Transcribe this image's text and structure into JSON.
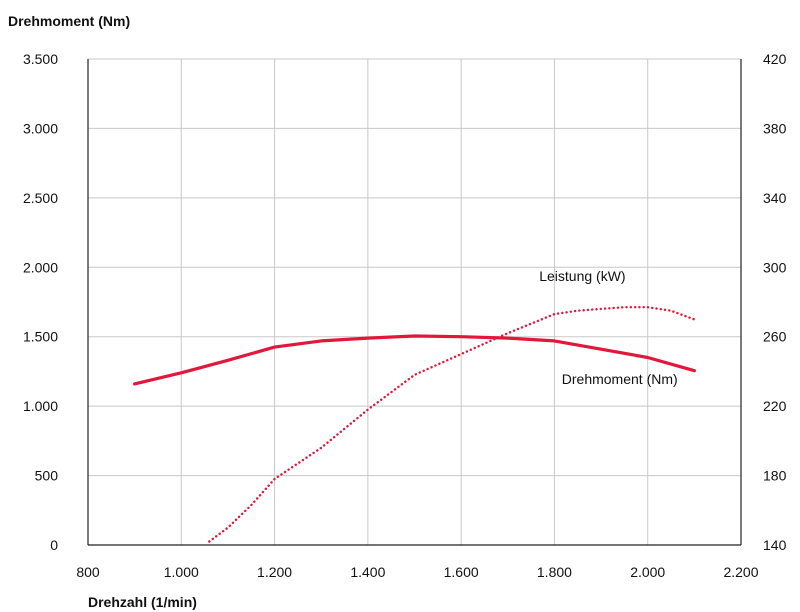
{
  "chart_data": {
    "type": "line",
    "title": "",
    "xlabel": "Drehzahl (1/min)",
    "ylabel_left": "Drehmoment (Nm)",
    "ylabel_right": "",
    "xlim": [
      800,
      2200
    ],
    "ylim_left": [
      0,
      3500
    ],
    "ylim_right": [
      140,
      420
    ],
    "x_ticks": [
      800,
      1000,
      1200,
      1400,
      1600,
      1800,
      2000,
      2200
    ],
    "x_tick_labels": [
      "800",
      "1.000",
      "1.200",
      "1.400",
      "1.600",
      "1.800",
      "2.000",
      "2.200"
    ],
    "y_left_ticks": [
      0,
      500,
      1000,
      1500,
      2000,
      2500,
      3000,
      3500
    ],
    "y_left_tick_labels": [
      "0",
      "500",
      "1.000",
      "1.500",
      "2.000",
      "2.500",
      "3.000",
      "3.500"
    ],
    "y_right_ticks": [
      140,
      180,
      220,
      260,
      300,
      340,
      380,
      420
    ],
    "y_right_tick_labels": [
      "140",
      "180",
      "220",
      "260",
      "300",
      "340",
      "380",
      "420"
    ],
    "grid": true,
    "series": [
      {
        "name": "Drehmoment (Nm)",
        "axis": "left",
        "style": "solid",
        "color": "#e3163c",
        "x": [
          900,
          1000,
          1100,
          1200,
          1300,
          1400,
          1500,
          1600,
          1700,
          1800,
          1900,
          2000,
          2100
        ],
        "y": [
          1160,
          1240,
          1330,
          1425,
          1470,
          1490,
          1505,
          1500,
          1490,
          1470,
          1410,
          1350,
          1255
        ]
      },
      {
        "name": "Leistung (kW)",
        "axis": "right",
        "style": "dotted",
        "color": "#e3163c",
        "x": [
          1060,
          1100,
          1150,
          1200,
          1300,
          1400,
          1500,
          1600,
          1700,
          1800,
          1850,
          1900,
          1950,
          2000,
          2050,
          2100
        ],
        "y": [
          142,
          150,
          163,
          178,
          196,
          218,
          238,
          250,
          262,
          273,
          275,
          276,
          277,
          277,
          275,
          270
        ]
      }
    ]
  }
}
